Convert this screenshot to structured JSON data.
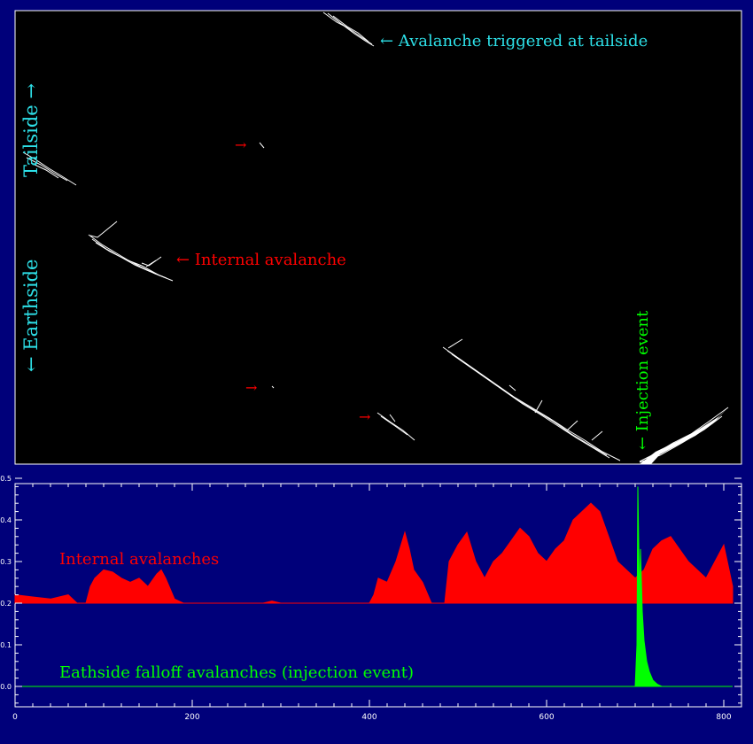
{
  "colors": {
    "background": "#00007a",
    "panel": "#000000",
    "frame": "#ffffff",
    "cyan": "#2de0e8",
    "red": "#ff0000",
    "green": "#00ff00",
    "trace": "#ffffff"
  },
  "top_panel": {
    "labels": {
      "tailside": "Tailside →",
      "earthside": "← Earthside",
      "tailside_avalanche": "← Avalanche triggered at tailside",
      "internal_avalanche": "← Internal avalanche",
      "injection": "← Injection event"
    },
    "pointers": [
      "→",
      "→",
      "→"
    ]
  },
  "chart_data": {
    "type": "area",
    "xlim": [
      0,
      810
    ],
    "ylim": [
      -0.05,
      0.5
    ],
    "x_ticks": [
      0,
      200,
      400,
      600,
      800
    ],
    "y_ticks": [
      0.0,
      0.1,
      0.2,
      0.3,
      0.4,
      0.5
    ],
    "y_tick_labels": [
      "0.0",
      "0.1",
      "0.2",
      "0.3",
      "0.4",
      "0.5"
    ],
    "title": "",
    "xlabel": "",
    "ylabel": "",
    "series": [
      {
        "name": "Internal avalanches",
        "color": "#ff0000",
        "baseline": 0.2,
        "x": [
          0,
          20,
          40,
          60,
          70,
          80,
          85,
          90,
          100,
          110,
          120,
          130,
          140,
          150,
          160,
          165,
          170,
          180,
          190,
          200,
          280,
          290,
          300,
          350,
          400,
          405,
          410,
          420,
          430,
          440,
          445,
          450,
          460,
          470,
          480,
          485,
          490,
          500,
          510,
          520,
          530,
          540,
          550,
          560,
          570,
          580,
          590,
          600,
          610,
          620,
          630,
          640,
          650,
          660,
          670,
          680,
          690,
          700,
          710,
          720,
          730,
          740,
          750,
          760,
          770,
          780,
          790,
          800,
          810
        ],
        "values": [
          0.22,
          0.215,
          0.21,
          0.22,
          0.2,
          0.2,
          0.24,
          0.26,
          0.28,
          0.275,
          0.26,
          0.25,
          0.26,
          0.24,
          0.27,
          0.28,
          0.26,
          0.21,
          0.2,
          0.2,
          0.2,
          0.205,
          0.2,
          0.2,
          0.2,
          0.22,
          0.26,
          0.25,
          0.3,
          0.37,
          0.33,
          0.28,
          0.25,
          0.2,
          0.2,
          0.2,
          0.3,
          0.34,
          0.37,
          0.3,
          0.26,
          0.3,
          0.32,
          0.35,
          0.38,
          0.36,
          0.32,
          0.3,
          0.33,
          0.35,
          0.4,
          0.42,
          0.44,
          0.42,
          0.36,
          0.3,
          0.28,
          0.26,
          0.28,
          0.33,
          0.35,
          0.36,
          0.33,
          0.3,
          0.28,
          0.26,
          0.3,
          0.34,
          0.24
        ]
      },
      {
        "name": "Eathside falloff avalanches (injection event)",
        "color": "#00ff00",
        "baseline": 0.0,
        "x": [
          0,
          700,
          702,
          703,
          705,
          706,
          708,
          710,
          713,
          716,
          720,
          725,
          730,
          810
        ],
        "values": [
          0.0,
          0.0,
          0.1,
          0.48,
          0.2,
          0.33,
          0.18,
          0.11,
          0.06,
          0.035,
          0.015,
          0.005,
          0.0,
          0.0
        ]
      }
    ]
  }
}
